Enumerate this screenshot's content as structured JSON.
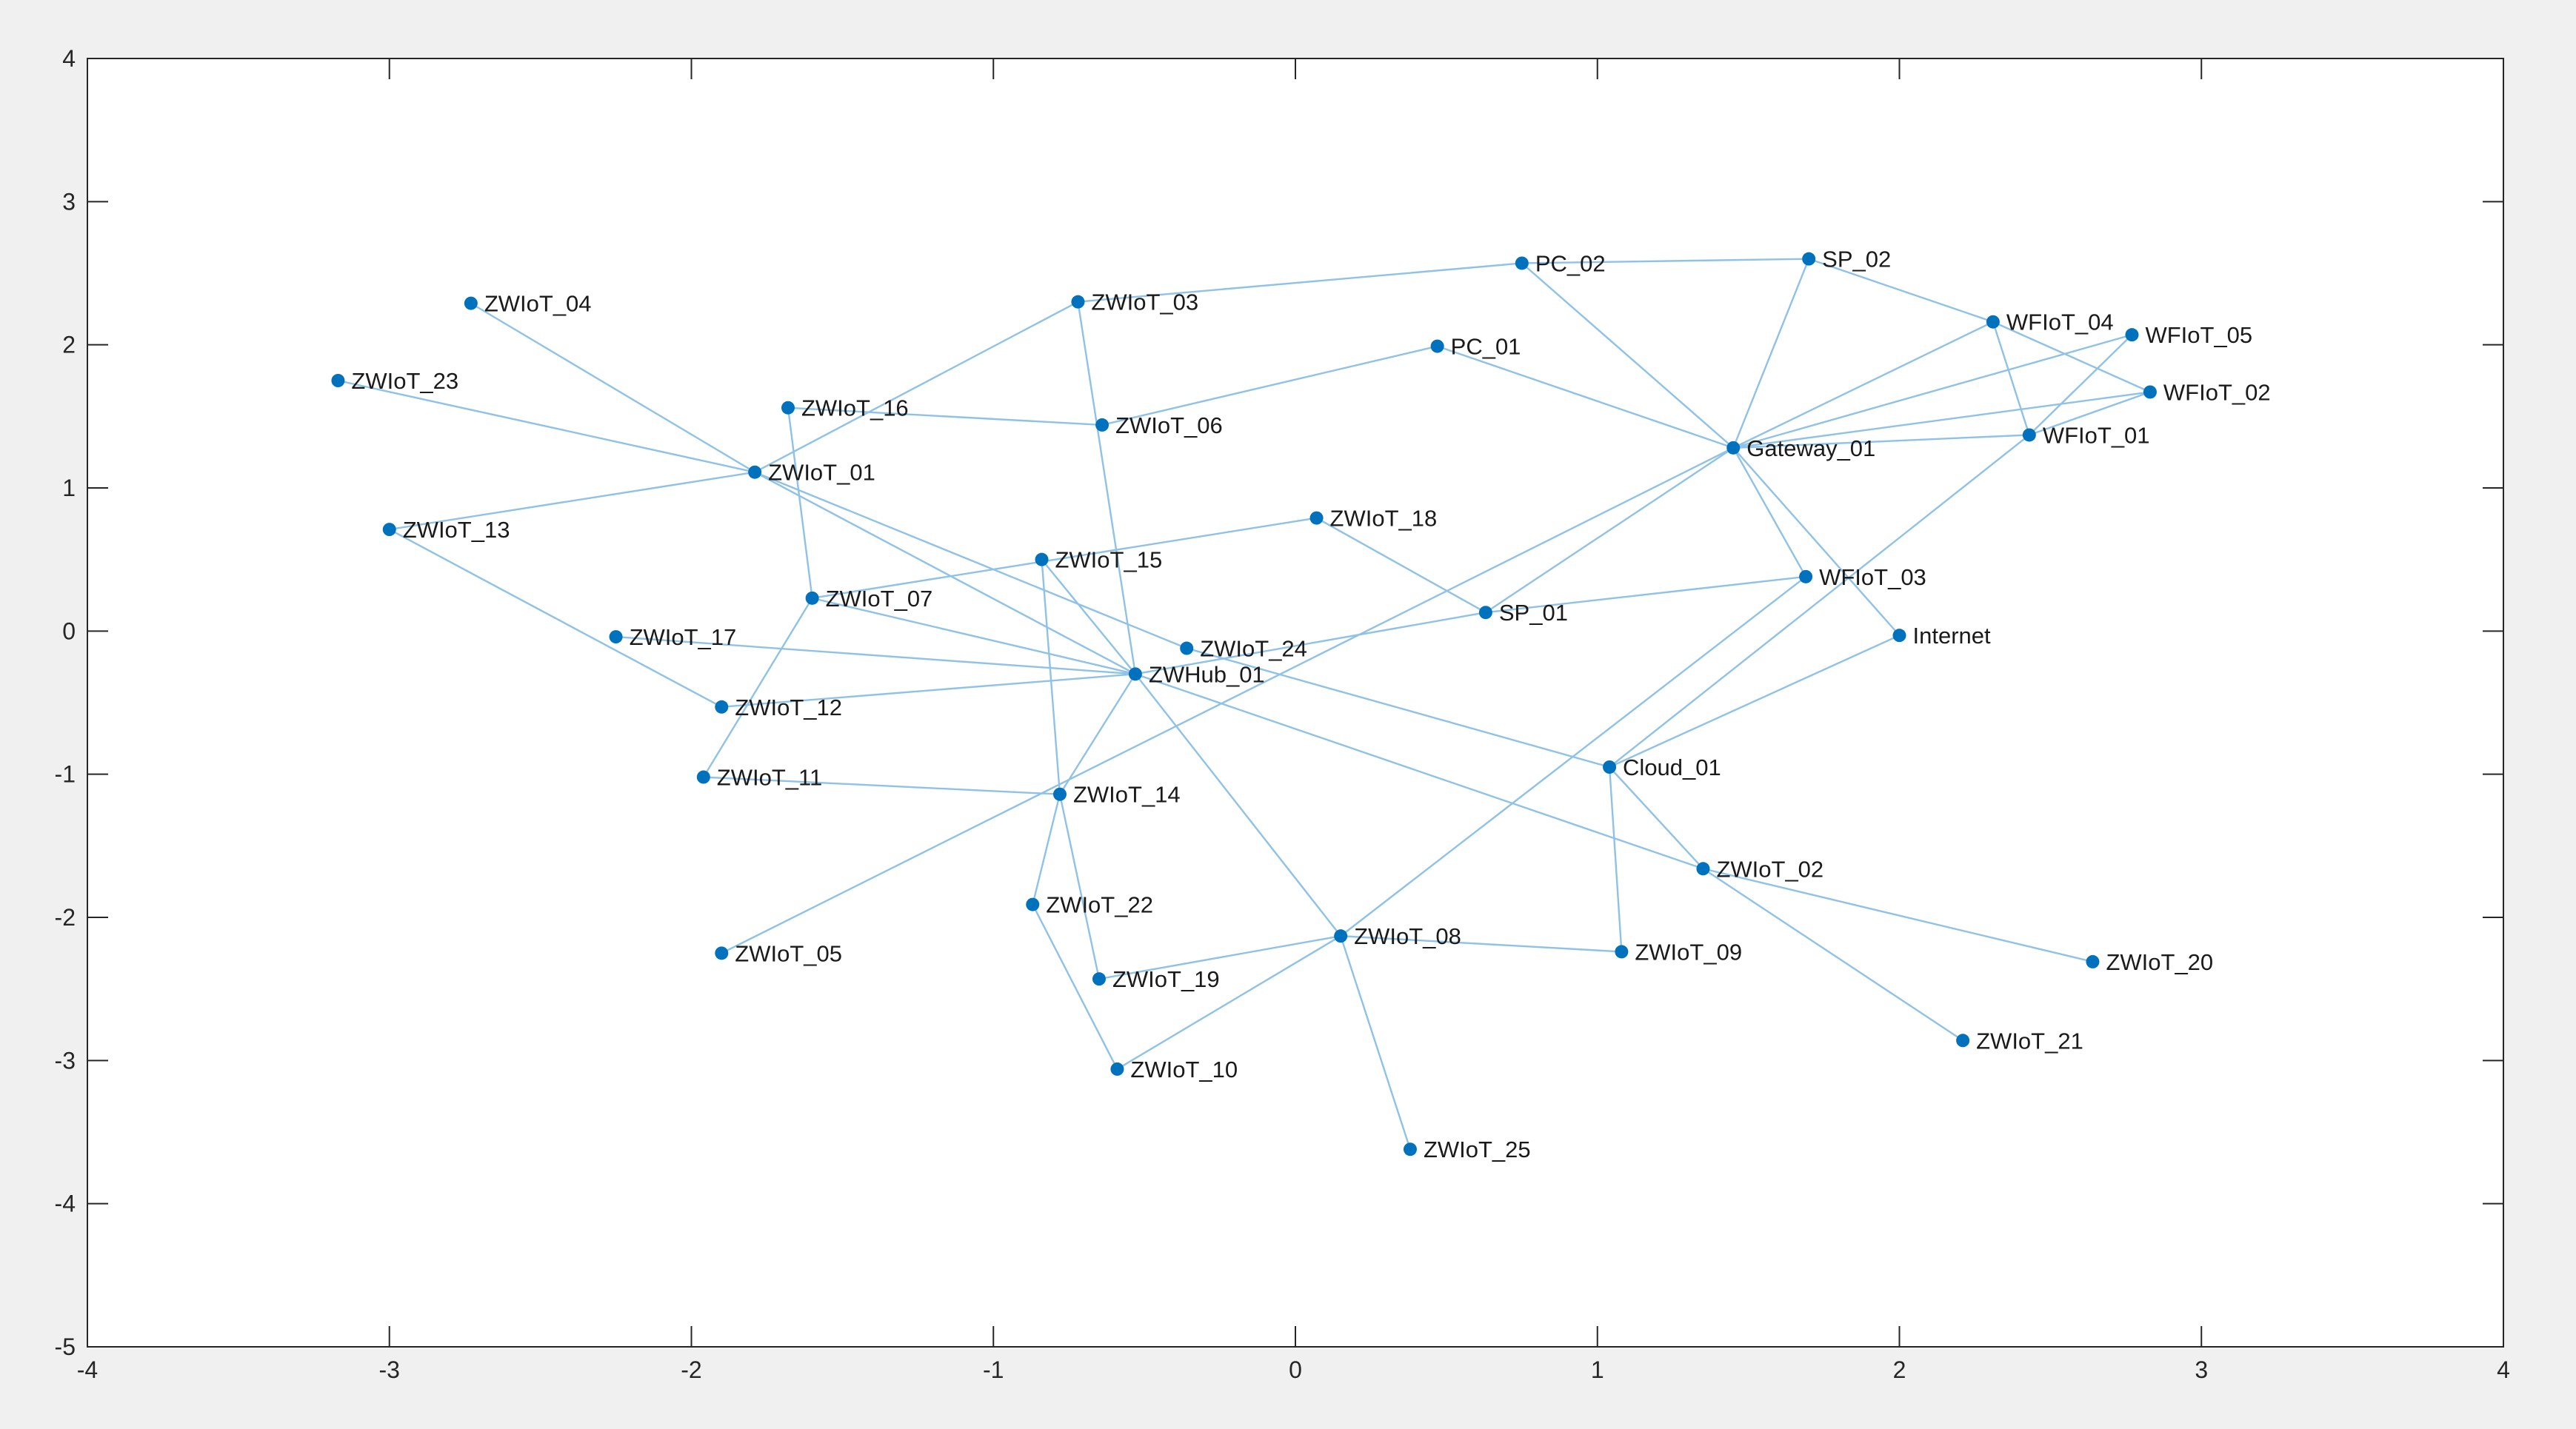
{
  "chart_data": {
    "type": "scatter",
    "subtype": "network-graph",
    "title": "",
    "xlabel": "",
    "ylabel": "",
    "xlim": [
      -4,
      4
    ],
    "ylim": [
      -5,
      4
    ],
    "xticks": [
      -4,
      -3,
      -2,
      -1,
      0,
      1,
      2,
      3,
      4
    ],
    "yticks": [
      -5,
      -4,
      -3,
      -2,
      -1,
      0,
      1,
      2,
      3,
      4
    ],
    "xtick_labels": [
      "-4",
      "-3",
      "-2",
      "-1",
      "0",
      "1",
      "2",
      "3",
      "4"
    ],
    "ytick_labels": [
      "-5",
      "-4",
      "-3",
      "-2",
      "-1",
      "0",
      "1",
      "2",
      "3",
      "4"
    ],
    "grid": false,
    "colors": {
      "node": "#0072bd",
      "edge": "#8fc2e6",
      "axes": "#262626",
      "plot_bg": "#ffffff",
      "figure_bg": "#f0f0f0"
    },
    "nodes": [
      {
        "id": "ZWIoT_04",
        "label": "ZWIoT_04",
        "x": -2.73,
        "y": 2.29
      },
      {
        "id": "ZWIoT_23",
        "label": "ZWIoT_23",
        "x": -3.17,
        "y": 1.75
      },
      {
        "id": "ZWIoT_13",
        "label": "ZWIoT_13",
        "x": -3.0,
        "y": 0.71
      },
      {
        "id": "ZWIoT_17",
        "label": "ZWIoT_17",
        "x": -2.25,
        "y": -0.04
      },
      {
        "id": "ZWIoT_12",
        "label": "ZWIoT_12",
        "x": -1.9,
        "y": -0.53
      },
      {
        "id": "ZWIoT_11",
        "label": "ZWIoT_11",
        "x": -1.96,
        "y": -1.02
      },
      {
        "id": "ZWIoT_05",
        "label": "ZWIoT_05",
        "x": -1.9,
        "y": -2.25
      },
      {
        "id": "ZWIoT_16",
        "label": "ZWIoT_16",
        "x": -1.68,
        "y": 1.56
      },
      {
        "id": "ZWIoT_01",
        "label": "ZWIoT_01",
        "x": -1.79,
        "y": 1.11
      },
      {
        "id": "ZWIoT_07",
        "label": "ZWIoT_07",
        "x": -1.6,
        "y": 0.23
      },
      {
        "id": "ZWIoT_03",
        "label": "ZWIoT_03",
        "x": -0.72,
        "y": 2.3
      },
      {
        "id": "ZWIoT_06",
        "label": "ZWIoT_06",
        "x": -0.64,
        "y": 1.44
      },
      {
        "id": "ZWIoT_15",
        "label": "ZWIoT_15",
        "x": -0.84,
        "y": 0.5
      },
      {
        "id": "ZWIoT_24",
        "label": "ZWIoT_24",
        "x": -0.36,
        "y": -0.12
      },
      {
        "id": "ZWHub_01",
        "label": "ZWHub_01",
        "x": -0.53,
        "y": -0.3
      },
      {
        "id": "ZWIoT_14",
        "label": "ZWIoT_14",
        "x": -0.78,
        "y": -1.14
      },
      {
        "id": "ZWIoT_22",
        "label": "ZWIoT_22",
        "x": -0.87,
        "y": -1.91
      },
      {
        "id": "ZWIoT_19",
        "label": "ZWIoT_19",
        "x": -0.65,
        "y": -2.43
      },
      {
        "id": "ZWIoT_10",
        "label": "ZWIoT_10",
        "x": -0.59,
        "y": -3.06
      },
      {
        "id": "ZWIoT_18",
        "label": "ZWIoT_18",
        "x": 0.07,
        "y": 0.79
      },
      {
        "id": "ZWIoT_08",
        "label": "ZWIoT_08",
        "x": 0.15,
        "y": -2.13
      },
      {
        "id": "ZWIoT_25",
        "label": "ZWIoT_25",
        "x": 0.38,
        "y": -3.62
      },
      {
        "id": "PC_01",
        "label": "PC_01",
        "x": 0.47,
        "y": 1.99
      },
      {
        "id": "SP_01",
        "label": "SP_01",
        "x": 0.63,
        "y": 0.13
      },
      {
        "id": "PC_02",
        "label": "PC_02",
        "x": 0.75,
        "y": 2.57
      },
      {
        "id": "Cloud_01",
        "label": "Cloud_01",
        "x": 1.04,
        "y": -0.95
      },
      {
        "id": "ZWIoT_09",
        "label": "ZWIoT_09",
        "x": 1.08,
        "y": -2.24
      },
      {
        "id": "ZWIoT_02",
        "label": "ZWIoT_02",
        "x": 1.35,
        "y": -1.66
      },
      {
        "id": "Gateway_01",
        "label": "Gateway_01",
        "x": 1.45,
        "y": 1.28
      },
      {
        "id": "SP_02",
        "label": "SP_02",
        "x": 1.7,
        "y": 2.6
      },
      {
        "id": "WFIoT_03",
        "label": "WFIoT_03",
        "x": 1.69,
        "y": 0.38
      },
      {
        "id": "Internet",
        "label": "Internet",
        "x": 2.0,
        "y": -0.03
      },
      {
        "id": "ZWIoT_21",
        "label": "ZWIoT_21",
        "x": 2.21,
        "y": -2.86
      },
      {
        "id": "WFIoT_04",
        "label": "WFIoT_04",
        "x": 2.31,
        "y": 2.16
      },
      {
        "id": "WFIoT_01",
        "label": "WFIoT_01",
        "x": 2.43,
        "y": 1.37
      },
      {
        "id": "ZWIoT_20",
        "label": "ZWIoT_20",
        "x": 2.64,
        "y": -2.31
      },
      {
        "id": "WFIoT_05",
        "label": "WFIoT_05",
        "x": 2.77,
        "y": 2.07
      },
      {
        "id": "WFIoT_02",
        "label": "WFIoT_02",
        "x": 2.83,
        "y": 1.67
      }
    ],
    "edges": [
      [
        "ZWIoT_04",
        "ZWIoT_01"
      ],
      [
        "ZWIoT_23",
        "ZWIoT_01"
      ],
      [
        "ZWIoT_13",
        "ZWIoT_01"
      ],
      [
        "ZWIoT_13",
        "ZWIoT_12"
      ],
      [
        "ZWIoT_16",
        "ZWIoT_06"
      ],
      [
        "ZWIoT_16",
        "ZWIoT_07"
      ],
      [
        "ZWIoT_01",
        "ZWIoT_03"
      ],
      [
        "ZWIoT_01",
        "ZWHub_01"
      ],
      [
        "ZWIoT_01",
        "ZWIoT_24"
      ],
      [
        "ZWIoT_07",
        "ZWHub_01"
      ],
      [
        "ZWIoT_07",
        "ZWIoT_11"
      ],
      [
        "ZWIoT_17",
        "ZWHub_01"
      ],
      [
        "ZWIoT_12",
        "ZWHub_01"
      ],
      [
        "ZWIoT_11",
        "ZWIoT_14"
      ],
      [
        "ZWIoT_05",
        "Gateway_01"
      ],
      [
        "ZWIoT_03",
        "PC_02"
      ],
      [
        "ZWIoT_03",
        "ZWHub_01"
      ],
      [
        "ZWIoT_06",
        "PC_01"
      ],
      [
        "ZWIoT_07",
        "ZWIoT_18"
      ],
      [
        "ZWIoT_15",
        "ZWIoT_14"
      ],
      [
        "ZWIoT_15",
        "ZWHub_01"
      ],
      [
        "ZWIoT_18",
        "SP_01"
      ],
      [
        "ZWIoT_24",
        "Cloud_01"
      ],
      [
        "ZWHub_01",
        "ZWIoT_14"
      ],
      [
        "ZWHub_01",
        "ZWIoT_08"
      ],
      [
        "ZWHub_01",
        "ZWIoT_02"
      ],
      [
        "ZWHub_01",
        "SP_01"
      ],
      [
        "ZWIoT_14",
        "ZWIoT_22"
      ],
      [
        "ZWIoT_14",
        "ZWIoT_19"
      ],
      [
        "ZWIoT_22",
        "ZWIoT_10"
      ],
      [
        "ZWIoT_19",
        "ZWIoT_08"
      ],
      [
        "ZWIoT_10",
        "ZWIoT_08"
      ],
      [
        "ZWIoT_08",
        "ZWIoT_09"
      ],
      [
        "ZWIoT_08",
        "ZWIoT_25"
      ],
      [
        "ZWIoT_08",
        "WFIoT_03"
      ],
      [
        "PC_02",
        "SP_02"
      ],
      [
        "PC_02",
        "Gateway_01"
      ],
      [
        "PC_01",
        "Gateway_01"
      ],
      [
        "SP_01",
        "Gateway_01"
      ],
      [
        "SP_01",
        "WFIoT_03"
      ],
      [
        "SP_02",
        "Gateway_01"
      ],
      [
        "SP_02",
        "WFIoT_04"
      ],
      [
        "Gateway_01",
        "WFIoT_04"
      ],
      [
        "Gateway_01",
        "WFIoT_05"
      ],
      [
        "Gateway_01",
        "WFIoT_02"
      ],
      [
        "Gateway_01",
        "WFIoT_01"
      ],
      [
        "Gateway_01",
        "WFIoT_03"
      ],
      [
        "Gateway_01",
        "Internet"
      ],
      [
        "WFIoT_04",
        "WFIoT_01"
      ],
      [
        "WFIoT_04",
        "WFIoT_02"
      ],
      [
        "WFIoT_05",
        "WFIoT_01"
      ],
      [
        "WFIoT_02",
        "WFIoT_01"
      ],
      [
        "WFIoT_01",
        "Cloud_01"
      ],
      [
        "Cloud_01",
        "Internet"
      ],
      [
        "Cloud_01",
        "ZWIoT_09"
      ],
      [
        "Cloud_01",
        "ZWIoT_02"
      ],
      [
        "ZWIoT_02",
        "ZWIoT_20"
      ],
      [
        "ZWIoT_02",
        "ZWIoT_21"
      ]
    ]
  }
}
